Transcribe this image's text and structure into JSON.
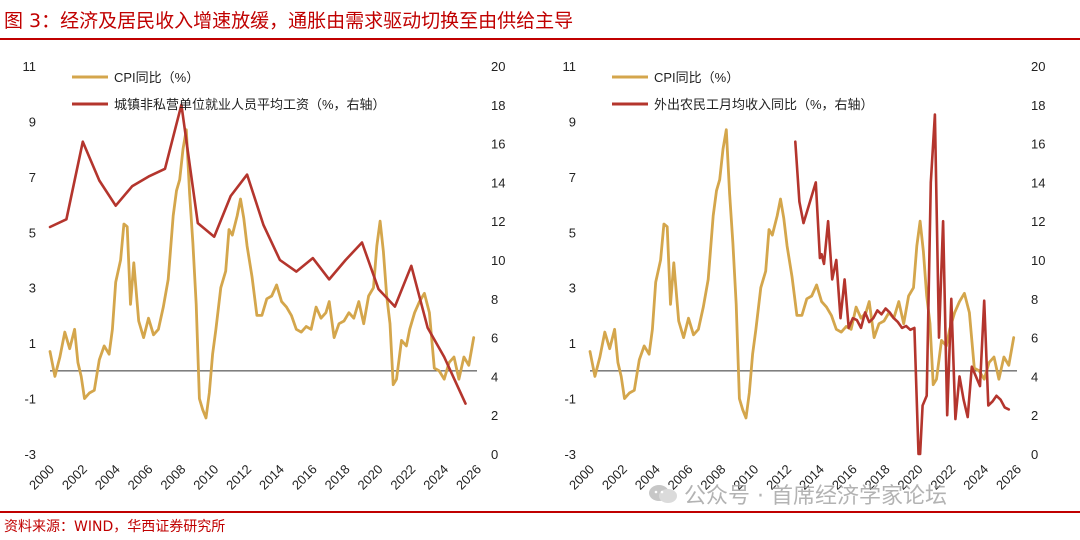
{
  "figure_title": "图 3：经济及居民收入增速放缓，通胀由需求驱动切换至由供给主导",
  "source_note": "资料来源：WIND，华西证券研究所",
  "watermark": "公众号 · 首席经济学家论坛",
  "colors": {
    "cpi": "#d4a64c",
    "income": "#b4352d",
    "accent": "#c00000"
  },
  "chart_data": [
    {
      "type": "line",
      "title": "",
      "xlabel": "",
      "x_ticks": [
        "2000",
        "2002",
        "2004",
        "2006",
        "2008",
        "2010",
        "2012",
        "2014",
        "2016",
        "2018",
        "2020",
        "2022",
        "2024",
        "2026"
      ],
      "xlim": [
        2000,
        2026
      ],
      "ylim": [
        -3,
        11
      ],
      "y_ticks": [
        -3,
        -1,
        1,
        3,
        5,
        7,
        9,
        11
      ],
      "y2lim": [
        0,
        20
      ],
      "y2_ticks": [
        0,
        2,
        4,
        6,
        8,
        10,
        12,
        14,
        16,
        18,
        20
      ],
      "legend": "top-left",
      "series": [
        {
          "name": "CPI同比（%）",
          "axis": "left",
          "color": "#d4a64c",
          "x": [
            2000.0,
            2000.3,
            2000.6,
            2000.9,
            2001.2,
            2001.5,
            2001.7,
            2001.9,
            2002.1,
            2002.4,
            2002.7,
            2003.0,
            2003.3,
            2003.6,
            2003.8,
            2004.0,
            2004.3,
            2004.5,
            2004.7,
            2004.9,
            2005.1,
            2005.4,
            2005.7,
            2006.0,
            2006.3,
            2006.6,
            2006.9,
            2007.2,
            2007.5,
            2007.7,
            2007.9,
            2008.1,
            2008.3,
            2008.5,
            2008.7,
            2008.9,
            2009.1,
            2009.3,
            2009.5,
            2009.7,
            2009.9,
            2010.1,
            2010.4,
            2010.7,
            2010.9,
            2011.1,
            2011.4,
            2011.6,
            2011.8,
            2012.0,
            2012.3,
            2012.6,
            2012.9,
            2013.2,
            2013.5,
            2013.8,
            2014.1,
            2014.4,
            2014.7,
            2015.0,
            2015.3,
            2015.6,
            2015.9,
            2016.2,
            2016.5,
            2016.8,
            2017.0,
            2017.3,
            2017.6,
            2017.9,
            2018.2,
            2018.5,
            2018.8,
            2019.1,
            2019.4,
            2019.7,
            2019.9,
            2020.1,
            2020.3,
            2020.5,
            2020.7,
            2020.9,
            2021.1,
            2021.4,
            2021.7,
            2021.9,
            2022.2,
            2022.5,
            2022.8,
            2023.1,
            2023.4,
            2023.7,
            2024.0,
            2024.3,
            2024.6,
            2024.9,
            2025.2,
            2025.5,
            2025.8
          ],
          "values": [
            0.7,
            -0.2,
            0.5,
            1.4,
            0.8,
            1.5,
            0.3,
            -0.2,
            -1.0,
            -0.8,
            -0.7,
            0.4,
            0.9,
            0.6,
            1.5,
            3.2,
            4.0,
            5.3,
            5.2,
            2.4,
            3.9,
            1.8,
            1.2,
            1.9,
            1.3,
            1.5,
            2.3,
            3.3,
            5.6,
            6.5,
            6.9,
            8.0,
            8.7,
            6.4,
            4.6,
            2.4,
            -1.0,
            -1.4,
            -1.7,
            -0.8,
            0.6,
            1.5,
            3.0,
            3.6,
            5.1,
            4.9,
            5.6,
            6.2,
            5.5,
            4.5,
            3.4,
            2.0,
            2.0,
            2.6,
            2.7,
            3.1,
            2.5,
            2.3,
            2.0,
            1.5,
            1.4,
            1.6,
            1.5,
            2.3,
            1.9,
            2.1,
            2.5,
            1.2,
            1.7,
            1.8,
            2.1,
            1.9,
            2.5,
            1.7,
            2.7,
            3.0,
            4.5,
            5.4,
            4.3,
            2.7,
            1.7,
            -0.5,
            -0.3,
            1.1,
            0.9,
            1.5,
            2.1,
            2.5,
            2.8,
            2.1,
            0.1,
            0.0,
            -0.3,
            0.3,
            0.5,
            -0.3,
            0.5,
            0.2,
            1.2
          ]
        },
        {
          "name": "城镇非私营单位就业人员平均工资（%，右轴）",
          "axis": "right",
          "color": "#b4352d",
          "x": [
            2000,
            2001,
            2002,
            2003,
            2004,
            2005,
            2006,
            2007,
            2008,
            2009,
            2010,
            2011,
            2012,
            2013,
            2014,
            2015,
            2016,
            2017,
            2018,
            2019,
            2020,
            2021,
            2022,
            2023,
            2024,
            2025.3
          ],
          "values": [
            11.7,
            12.1,
            16.1,
            14.1,
            12.8,
            13.8,
            14.3,
            14.7,
            18.0,
            11.9,
            11.2,
            13.3,
            14.4,
            11.8,
            10.0,
            9.4,
            10.1,
            9.0,
            10.0,
            10.9,
            8.5,
            7.6,
            9.7,
            6.5,
            5.0,
            2.6
          ]
        }
      ]
    },
    {
      "type": "line",
      "title": "",
      "xlabel": "",
      "x_ticks": [
        "2000",
        "2002",
        "2004",
        "2006",
        "2008",
        "2010",
        "2012",
        "2014",
        "2016",
        "2018",
        "2020",
        "2022",
        "2024",
        "2026"
      ],
      "xlim": [
        2000,
        2026
      ],
      "ylim": [
        -3,
        11
      ],
      "y_ticks": [
        -3,
        -1,
        1,
        3,
        5,
        7,
        9,
        11
      ],
      "y2lim": [
        0,
        20
      ],
      "y2_ticks": [
        0,
        2,
        4,
        6,
        8,
        10,
        12,
        14,
        16,
        18,
        20
      ],
      "legend": "top-left",
      "series": [
        {
          "name": "CPI同比（%）",
          "axis": "left",
          "color": "#d4a64c",
          "x": [
            2000.0,
            2000.3,
            2000.6,
            2000.9,
            2001.2,
            2001.5,
            2001.7,
            2001.9,
            2002.1,
            2002.4,
            2002.7,
            2003.0,
            2003.3,
            2003.6,
            2003.8,
            2004.0,
            2004.3,
            2004.5,
            2004.7,
            2004.9,
            2005.1,
            2005.4,
            2005.7,
            2006.0,
            2006.3,
            2006.6,
            2006.9,
            2007.2,
            2007.5,
            2007.7,
            2007.9,
            2008.1,
            2008.3,
            2008.5,
            2008.7,
            2008.9,
            2009.1,
            2009.3,
            2009.5,
            2009.7,
            2009.9,
            2010.1,
            2010.4,
            2010.7,
            2010.9,
            2011.1,
            2011.4,
            2011.6,
            2011.8,
            2012.0,
            2012.3,
            2012.6,
            2012.9,
            2013.2,
            2013.5,
            2013.8,
            2014.1,
            2014.4,
            2014.7,
            2015.0,
            2015.3,
            2015.6,
            2015.9,
            2016.2,
            2016.5,
            2016.8,
            2017.0,
            2017.3,
            2017.6,
            2017.9,
            2018.2,
            2018.5,
            2018.8,
            2019.1,
            2019.4,
            2019.7,
            2019.9,
            2020.1,
            2020.3,
            2020.5,
            2020.7,
            2020.9,
            2021.1,
            2021.4,
            2021.7,
            2021.9,
            2022.2,
            2022.5,
            2022.8,
            2023.1,
            2023.4,
            2023.7,
            2024.0,
            2024.3,
            2024.6,
            2024.9,
            2025.2,
            2025.5,
            2025.8
          ],
          "values": [
            0.7,
            -0.2,
            0.5,
            1.4,
            0.8,
            1.5,
            0.3,
            -0.2,
            -1.0,
            -0.8,
            -0.7,
            0.4,
            0.9,
            0.6,
            1.5,
            3.2,
            4.0,
            5.3,
            5.2,
            2.4,
            3.9,
            1.8,
            1.2,
            1.9,
            1.3,
            1.5,
            2.3,
            3.3,
            5.6,
            6.5,
            6.9,
            8.0,
            8.7,
            6.4,
            4.6,
            2.4,
            -1.0,
            -1.4,
            -1.7,
            -0.8,
            0.6,
            1.5,
            3.0,
            3.6,
            5.1,
            4.9,
            5.6,
            6.2,
            5.5,
            4.5,
            3.4,
            2.0,
            2.0,
            2.6,
            2.7,
            3.1,
            2.5,
            2.3,
            2.0,
            1.5,
            1.4,
            1.6,
            1.5,
            2.3,
            1.9,
            2.1,
            2.5,
            1.2,
            1.7,
            1.8,
            2.1,
            1.9,
            2.5,
            1.7,
            2.7,
            3.0,
            4.5,
            5.4,
            4.3,
            2.7,
            1.7,
            -0.5,
            -0.3,
            1.1,
            0.9,
            1.5,
            2.1,
            2.5,
            2.8,
            2.1,
            0.1,
            0.0,
            -0.3,
            0.3,
            0.5,
            -0.3,
            0.5,
            0.2,
            1.2
          ]
        },
        {
          "name": "外出农民工月均收入同比（%，右轴）",
          "axis": "right",
          "color": "#b4352d",
          "x": [
            2012.5,
            2012.75,
            2013.0,
            2013.25,
            2013.5,
            2013.75,
            2014.0,
            2014.1,
            2014.25,
            2014.5,
            2014.75,
            2015.0,
            2015.25,
            2015.5,
            2015.75,
            2016.0,
            2016.25,
            2016.5,
            2016.75,
            2017.0,
            2017.25,
            2017.5,
            2017.75,
            2018.0,
            2018.25,
            2018.5,
            2018.75,
            2019.0,
            2019.25,
            2019.5,
            2019.75,
            2020.0,
            2020.1,
            2020.25,
            2020.5,
            2020.75,
            2021.0,
            2021.25,
            2021.5,
            2021.75,
            2022.0,
            2022.25,
            2022.5,
            2022.75,
            2023.0,
            2023.25,
            2023.5,
            2023.75,
            2024.0,
            2024.25,
            2024.5,
            2024.75,
            2025.0,
            2025.25,
            2025.5
          ],
          "values": [
            16.1,
            13.0,
            11.9,
            12.6,
            13.3,
            14.0,
            10.1,
            10.3,
            9.8,
            12.0,
            9.0,
            10.0,
            7.0,
            9.0,
            6.5,
            7.0,
            6.9,
            6.5,
            7.3,
            6.8,
            7.0,
            7.4,
            7.2,
            7.5,
            7.3,
            7.0,
            6.8,
            6.5,
            6.6,
            6.4,
            6.5,
            0.0,
            0.0,
            2.5,
            3.0,
            14.0,
            17.5,
            6.0,
            12.0,
            2.0,
            8.0,
            1.8,
            4.0,
            2.8,
            1.9,
            4.5,
            4.0,
            3.5,
            7.9,
            2.5,
            2.7,
            3.0,
            2.8,
            2.4,
            2.3
          ]
        }
      ]
    }
  ]
}
